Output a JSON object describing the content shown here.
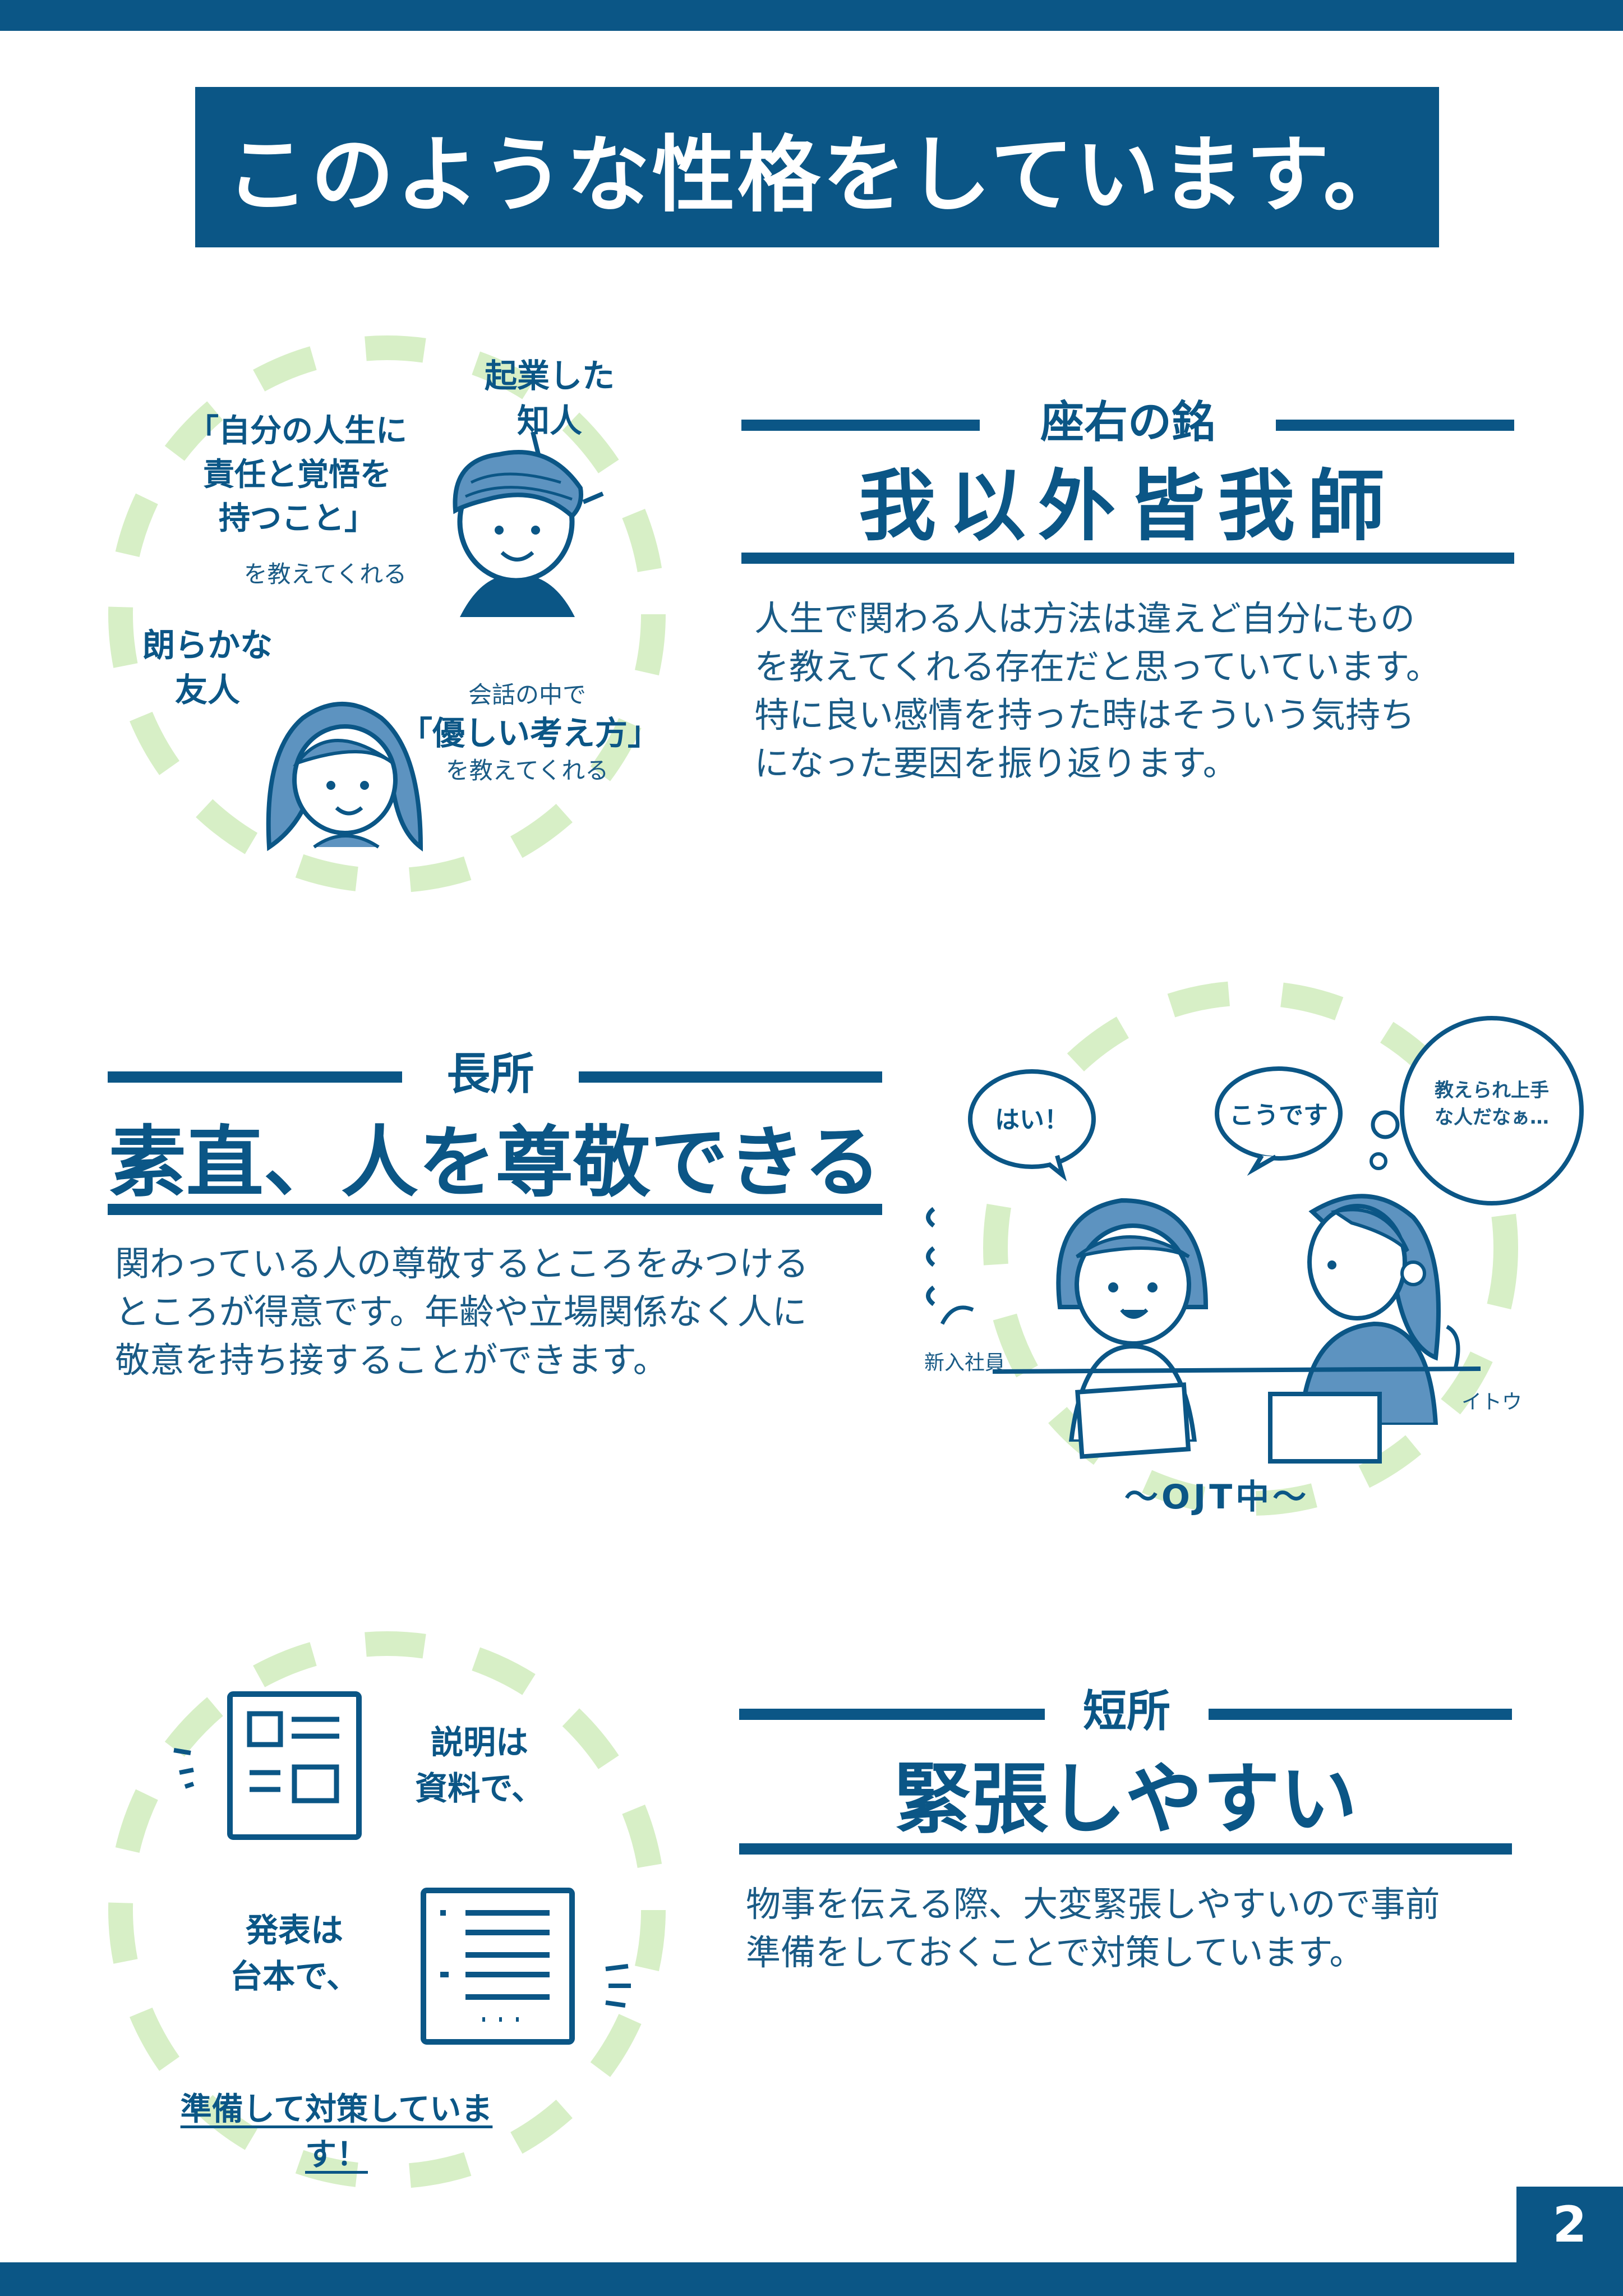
{
  "title": "このような性格をしています。",
  "page_number": "2",
  "motto": {
    "label": "座右の銘",
    "headline": "我以外皆我師",
    "body": "人生で関わる人は方法は違えど自分にもの\nを教えてくれる存在だと思っていています。\n特に良い感情を持った時はそういう気持ち\nになった要因を振り返ります。",
    "illustration": {
      "entrepreneur_label": "起業した\n知人",
      "entrepreneur_lesson": "「自分の人生に\n責任と覚悟を\n持つこと」",
      "entrepreneur_suffix": "を教えてくれる",
      "friend_label": "朗らかな\n友人",
      "friend_prefix": "会話の中で",
      "friend_lesson": "「優しい考え方」",
      "friend_suffix": "を教えてくれる"
    }
  },
  "strength": {
    "label": "長所",
    "headline": "素直、人を尊敬できる",
    "body": "関わっている人の尊敬するところをみつける\nところが得意です。年齢や立場関係なく人に\n敬意を持ち接することができます。",
    "illustration": {
      "bubble_1": "はい！",
      "bubble_2": "こうです",
      "bubble_3": "教えられ上手\nな人だなぁ…",
      "new_employee": "新入社員",
      "ito": "イトウ",
      "caption": "〜OJT中〜"
    }
  },
  "weakness": {
    "label": "短所",
    "headline": "緊張しやすい",
    "body": "物事を伝える際、大変緊張しやすいので事前\n準備をしておくことで対策しています。",
    "illustration": {
      "docs_label": "説明は\n資料で、",
      "script_label": "発表は\n台本で、",
      "footer": "準備して対策しています！"
    }
  },
  "colors": {
    "primary": "#0b5686",
    "accent_green": "#d7efc6",
    "hair": "#5d93c0"
  }
}
